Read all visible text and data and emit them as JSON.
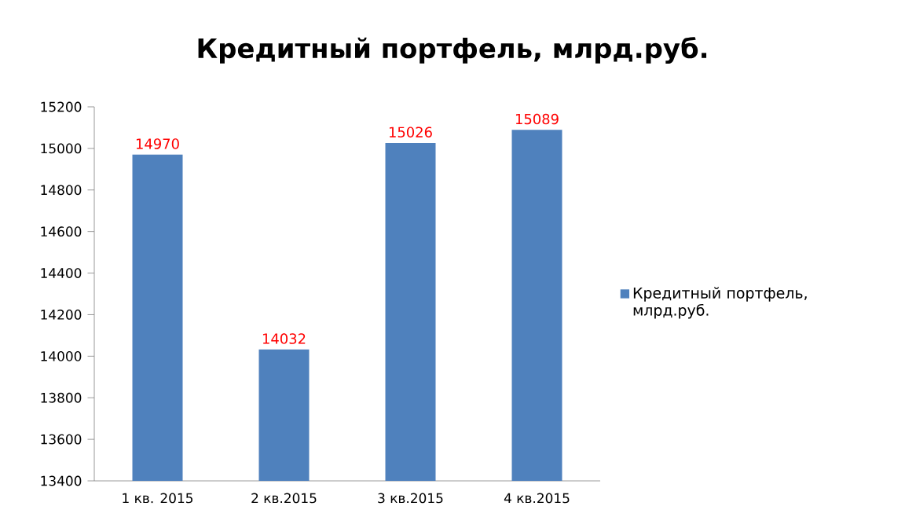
{
  "chart_data": {
    "type": "bar",
    "title": "Кредитный портфель, млрд.руб.",
    "categories": [
      "1 кв. 2015",
      "2 кв.2015",
      "3 кв.2015",
      "4 кв.2015"
    ],
    "series": [
      {
        "name": "Кредитный портфель, млрд.руб.",
        "color": "#4f81bd",
        "values": [
          14970,
          14032,
          15026,
          15089
        ]
      }
    ],
    "ylim": [
      13400,
      15200
    ],
    "yticks": [
      13400,
      13600,
      13800,
      14000,
      14200,
      14400,
      14600,
      14800,
      15000,
      15200
    ],
    "data_labels": true,
    "grid": false,
    "legend": "right"
  }
}
